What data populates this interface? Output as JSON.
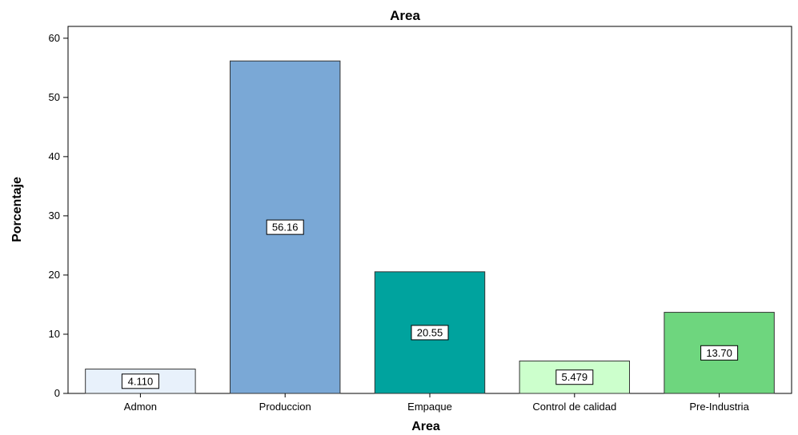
{
  "chart_data": {
    "type": "bar",
    "title": "Area",
    "xlabel": "Area",
    "ylabel": "Porcentaje",
    "ylim": [
      0,
      62
    ],
    "yticks": [
      0,
      10,
      20,
      30,
      40,
      50,
      60
    ],
    "categories": [
      "Admon",
      "Produccion",
      "Empaque",
      "Control de calidad",
      "Pre-Industria"
    ],
    "values": [
      4.11,
      56.16,
      20.55,
      5.479,
      13.7
    ],
    "data_labels": [
      "4.110",
      "56.16",
      "20.55",
      "5.479",
      "13.70"
    ],
    "colors": [
      "#e8f1fb",
      "#7aa8d6",
      "#00a39e",
      "#ccffcc",
      "#6ed67e"
    ],
    "grid": false,
    "legend": "none"
  }
}
